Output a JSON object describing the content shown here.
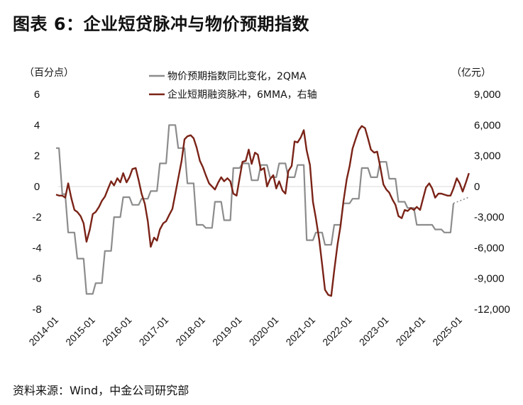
{
  "title": "图表 6：企业短贷脉冲与物价预期指数",
  "source": "资料来源：Wind，中金公司研究部",
  "chart_data": {
    "type": "line",
    "left_unit": "（百分点）",
    "right_unit": "（亿元）",
    "left_axis": {
      "range": [
        -8,
        6
      ],
      "ticks": [
        "6",
        "4",
        "2",
        "0",
        "-2",
        "-4",
        "-6",
        "-8"
      ],
      "tick_values": [
        6,
        4,
        2,
        0,
        -2,
        -4,
        -6,
        -8
      ]
    },
    "right_axis": {
      "range": [
        -12000,
        9000
      ],
      "ticks": [
        "9,000",
        "6,000",
        "3,000",
        "0",
        "-3,000",
        "-6,000",
        "-9,000",
        "-12,000"
      ],
      "tick_values": [
        9000,
        6000,
        3000,
        0,
        -3000,
        -6000,
        -9000,
        -12000
      ]
    },
    "x_axis": {
      "range": [
        2014.0,
        2025.1
      ],
      "ticks": [
        "2014-01",
        "2015-01",
        "2016-01",
        "2017-01",
        "2018-01",
        "2019-01",
        "2020-01",
        "2021-01",
        "2022-01",
        "2023-01",
        "2024-01",
        "2025-01"
      ],
      "tick_values": [
        2014,
        2015,
        2016,
        2017,
        2018,
        2019,
        2020,
        2021,
        2022,
        2023,
        2024,
        2025
      ]
    },
    "series": [
      {
        "name": "物价预期指数同比变化，2QMA",
        "axis": "left",
        "color": "#8c8c8c",
        "points": [
          [
            2014.0,
            2.5
          ],
          [
            2014.08,
            2.5
          ],
          [
            2014.17,
            -0.5
          ],
          [
            2014.25,
            -0.5
          ],
          [
            2014.33,
            -3.0
          ],
          [
            2014.42,
            -3.0
          ],
          [
            2014.5,
            -3.0
          ],
          [
            2014.58,
            -4.7
          ],
          [
            2014.67,
            -4.7
          ],
          [
            2014.75,
            -4.7
          ],
          [
            2014.83,
            -7.0
          ],
          [
            2014.92,
            -7.0
          ],
          [
            2015.0,
            -7.0
          ],
          [
            2015.08,
            -6.3
          ],
          [
            2015.17,
            -6.3
          ],
          [
            2015.25,
            -6.3
          ],
          [
            2015.33,
            -4.2
          ],
          [
            2015.42,
            -4.2
          ],
          [
            2015.5,
            -4.2
          ],
          [
            2015.58,
            -2.0
          ],
          [
            2015.67,
            -2.0
          ],
          [
            2015.75,
            -2.0
          ],
          [
            2015.83,
            -0.7
          ],
          [
            2015.92,
            -0.7
          ],
          [
            2016.0,
            -0.7
          ],
          [
            2016.08,
            -1.2
          ],
          [
            2016.17,
            -1.2
          ],
          [
            2016.25,
            -1.2
          ],
          [
            2016.33,
            -0.8
          ],
          [
            2016.42,
            -0.8
          ],
          [
            2016.5,
            -0.8
          ],
          [
            2016.58,
            -0.3
          ],
          [
            2016.67,
            -0.3
          ],
          [
            2016.75,
            -0.3
          ],
          [
            2016.83,
            1.5
          ],
          [
            2016.92,
            1.5
          ],
          [
            2017.0,
            1.5
          ],
          [
            2017.08,
            4.0
          ],
          [
            2017.17,
            4.0
          ],
          [
            2017.25,
            4.0
          ],
          [
            2017.33,
            2.5
          ],
          [
            2017.42,
            2.5
          ],
          [
            2017.5,
            2.5
          ],
          [
            2017.58,
            0.2
          ],
          [
            2017.67,
            0.2
          ],
          [
            2017.75,
            0.2
          ],
          [
            2017.83,
            -2.5
          ],
          [
            2017.92,
            -2.5
          ],
          [
            2018.0,
            -2.5
          ],
          [
            2018.08,
            -2.7
          ],
          [
            2018.17,
            -2.7
          ],
          [
            2018.25,
            -2.7
          ],
          [
            2018.33,
            -1.0
          ],
          [
            2018.42,
            -1.0
          ],
          [
            2018.5,
            -1.0
          ],
          [
            2018.58,
            -2.2
          ],
          [
            2018.67,
            -2.2
          ],
          [
            2018.75,
            -2.2
          ],
          [
            2018.83,
            1.2
          ],
          [
            2018.92,
            1.2
          ],
          [
            2019.0,
            1.2
          ],
          [
            2019.08,
            1.5
          ],
          [
            2019.17,
            1.5
          ],
          [
            2019.25,
            1.5
          ],
          [
            2019.33,
            0.4
          ],
          [
            2019.42,
            0.4
          ],
          [
            2019.5,
            0.4
          ],
          [
            2019.58,
            1.4
          ],
          [
            2019.67,
            1.4
          ],
          [
            2019.75,
            1.4
          ],
          [
            2019.83,
            0.6
          ],
          [
            2019.92,
            0.6
          ],
          [
            2020.0,
            0.6
          ],
          [
            2020.08,
            1.5
          ],
          [
            2020.17,
            1.5
          ],
          [
            2020.25,
            1.5
          ],
          [
            2020.33,
            0.6
          ],
          [
            2020.42,
            0.6
          ],
          [
            2020.5,
            0.6
          ],
          [
            2020.58,
            1.4
          ],
          [
            2020.67,
            1.4
          ],
          [
            2020.75,
            1.4
          ],
          [
            2020.83,
            -3.5
          ],
          [
            2020.92,
            -3.5
          ],
          [
            2021.0,
            -3.5
          ],
          [
            2021.08,
            -3.0
          ],
          [
            2021.17,
            -3.0
          ],
          [
            2021.25,
            -3.0
          ],
          [
            2021.33,
            -3.8
          ],
          [
            2021.42,
            -3.8
          ],
          [
            2021.5,
            -3.8
          ],
          [
            2021.58,
            -2.5
          ],
          [
            2021.67,
            -2.5
          ],
          [
            2021.75,
            -2.5
          ],
          [
            2021.83,
            -1.1
          ],
          [
            2021.92,
            -1.1
          ],
          [
            2022.0,
            -1.1
          ],
          [
            2022.08,
            -0.8
          ],
          [
            2022.17,
            -0.8
          ],
          [
            2022.25,
            -0.8
          ],
          [
            2022.33,
            1.2
          ],
          [
            2022.42,
            1.2
          ],
          [
            2022.5,
            1.2
          ],
          [
            2022.58,
            0.6
          ],
          [
            2022.67,
            0.6
          ],
          [
            2022.75,
            0.6
          ],
          [
            2022.83,
            1.6
          ],
          [
            2022.92,
            1.6
          ],
          [
            2023.0,
            1.6
          ],
          [
            2023.08,
            0.5
          ],
          [
            2023.17,
            0.5
          ],
          [
            2023.25,
            0.5
          ],
          [
            2023.33,
            -1.0
          ],
          [
            2023.42,
            -1.0
          ],
          [
            2023.5,
            -1.0
          ],
          [
            2023.58,
            -1.4
          ],
          [
            2023.67,
            -1.4
          ],
          [
            2023.75,
            -1.4
          ],
          [
            2023.83,
            -2.5
          ],
          [
            2023.92,
            -2.5
          ],
          [
            2024.0,
            -2.5
          ],
          [
            2024.08,
            -2.5
          ],
          [
            2024.17,
            -2.5
          ],
          [
            2024.25,
            -2.5
          ],
          [
            2024.33,
            -2.8
          ],
          [
            2024.42,
            -2.8
          ],
          [
            2024.5,
            -2.8
          ],
          [
            2024.58,
            -3.0
          ],
          [
            2024.67,
            -3.0
          ],
          [
            2024.75,
            -3.0
          ],
          [
            2024.83,
            -1.1
          ]
        ]
      },
      {
        "name": "企业短期融资脉冲，6MMA，右轴",
        "axis": "right",
        "color": "#7a2317",
        "points": [
          [
            2014.0,
            -800
          ],
          [
            2014.08,
            -900
          ],
          [
            2014.17,
            -900
          ],
          [
            2014.25,
            -1100
          ],
          [
            2014.33,
            300
          ],
          [
            2014.42,
            -1200
          ],
          [
            2014.5,
            -2300
          ],
          [
            2014.58,
            -2500
          ],
          [
            2014.67,
            -2900
          ],
          [
            2014.75,
            -3600
          ],
          [
            2014.83,
            -5400
          ],
          [
            2014.92,
            -4200
          ],
          [
            2015.0,
            -2700
          ],
          [
            2015.08,
            -2500
          ],
          [
            2015.17,
            -2000
          ],
          [
            2015.25,
            -1400
          ],
          [
            2015.33,
            -1000
          ],
          [
            2015.42,
            -200
          ],
          [
            2015.5,
            500
          ],
          [
            2015.58,
            100
          ],
          [
            2015.67,
            800
          ],
          [
            2015.75,
            400
          ],
          [
            2015.83,
            1300
          ],
          [
            2015.92,
            400
          ],
          [
            2016.0,
            900
          ],
          [
            2016.08,
            1700
          ],
          [
            2016.17,
            1800
          ],
          [
            2016.25,
            600
          ],
          [
            2016.33,
            -700
          ],
          [
            2016.42,
            -1700
          ],
          [
            2016.5,
            -3400
          ],
          [
            2016.58,
            -5900
          ],
          [
            2016.67,
            -5000
          ],
          [
            2016.75,
            -5300
          ],
          [
            2016.83,
            -4200
          ],
          [
            2016.92,
            -3600
          ],
          [
            2017.0,
            -3400
          ],
          [
            2017.08,
            -2800
          ],
          [
            2017.17,
            -2200
          ],
          [
            2017.25,
            -700
          ],
          [
            2017.33,
            800
          ],
          [
            2017.42,
            2500
          ],
          [
            2017.5,
            4600
          ],
          [
            2017.58,
            4900
          ],
          [
            2017.67,
            5000
          ],
          [
            2017.75,
            4700
          ],
          [
            2017.83,
            3800
          ],
          [
            2017.92,
            2500
          ],
          [
            2018.0,
            1900
          ],
          [
            2018.08,
            1100
          ],
          [
            2018.17,
            300
          ],
          [
            2018.25,
            0
          ],
          [
            2018.33,
            -300
          ],
          [
            2018.42,
            400
          ],
          [
            2018.5,
            900
          ],
          [
            2018.58,
            500
          ],
          [
            2018.67,
            800
          ],
          [
            2018.75,
            500
          ],
          [
            2018.83,
            -700
          ],
          [
            2018.92,
            -900
          ],
          [
            2019.0,
            800
          ],
          [
            2019.08,
            2400
          ],
          [
            2019.17,
            2500
          ],
          [
            2019.25,
            3600
          ],
          [
            2019.33,
            2200
          ],
          [
            2019.42,
            3300
          ],
          [
            2019.5,
            3100
          ],
          [
            2019.58,
            1600
          ],
          [
            2019.67,
            1800
          ],
          [
            2019.75,
            0
          ],
          [
            2019.83,
            700
          ],
          [
            2019.92,
            1100
          ],
          [
            2020.0,
            -200
          ],
          [
            2020.08,
            500
          ],
          [
            2020.17,
            -400
          ],
          [
            2020.25,
            -700
          ],
          [
            2020.33,
            1500
          ],
          [
            2020.42,
            2000
          ],
          [
            2020.5,
            4400
          ],
          [
            2020.58,
            4300
          ],
          [
            2020.67,
            4800
          ],
          [
            2020.75,
            5500
          ],
          [
            2020.83,
            3500
          ],
          [
            2020.92,
            2100
          ],
          [
            2021.0,
            -1500
          ],
          [
            2021.08,
            -3100
          ],
          [
            2021.17,
            -5200
          ],
          [
            2021.25,
            -7600
          ],
          [
            2021.33,
            -10100
          ],
          [
            2021.42,
            -10600
          ],
          [
            2021.5,
            -10700
          ],
          [
            2021.58,
            -8200
          ],
          [
            2021.67,
            -5700
          ],
          [
            2021.75,
            -3900
          ],
          [
            2021.83,
            -1500
          ],
          [
            2021.92,
            700
          ],
          [
            2022.0,
            2000
          ],
          [
            2022.08,
            3700
          ],
          [
            2022.17,
            4700
          ],
          [
            2022.25,
            5500
          ],
          [
            2022.33,
            5900
          ],
          [
            2022.42,
            5700
          ],
          [
            2022.5,
            4700
          ],
          [
            2022.58,
            3600
          ],
          [
            2022.67,
            3300
          ],
          [
            2022.75,
            3400
          ],
          [
            2022.83,
            2000
          ],
          [
            2022.92,
            200
          ],
          [
            2023.0,
            -300
          ],
          [
            2023.08,
            -600
          ],
          [
            2023.17,
            -1300
          ],
          [
            2023.25,
            -1800
          ],
          [
            2023.33,
            -2900
          ],
          [
            2023.42,
            -3100
          ],
          [
            2023.5,
            -2300
          ],
          [
            2023.58,
            -2400
          ],
          [
            2023.67,
            -2100
          ],
          [
            2023.75,
            -2300
          ],
          [
            2023.83,
            -2000
          ],
          [
            2023.92,
            -2300
          ],
          [
            2024.0,
            -1200
          ],
          [
            2024.08,
            -100
          ],
          [
            2024.17,
            300
          ],
          [
            2024.25,
            -200
          ],
          [
            2024.33,
            -1100
          ],
          [
            2024.42,
            -700
          ],
          [
            2024.5,
            -700
          ],
          [
            2024.58,
            -800
          ],
          [
            2024.67,
            -900
          ],
          [
            2024.75,
            -900
          ],
          [
            2024.83,
            -200
          ],
          [
            2024.92,
            800
          ],
          [
            2025.0,
            300
          ],
          [
            2025.08,
            -500
          ],
          [
            2025.17,
            400
          ],
          [
            2025.25,
            1300
          ]
        ]
      }
    ],
    "projection": {
      "axis": "left",
      "style": "dotted",
      "color": "#8c8c8c",
      "from": [
        2024.83,
        -1.1
      ],
      "to": [
        2025.25,
        -0.7
      ]
    }
  }
}
